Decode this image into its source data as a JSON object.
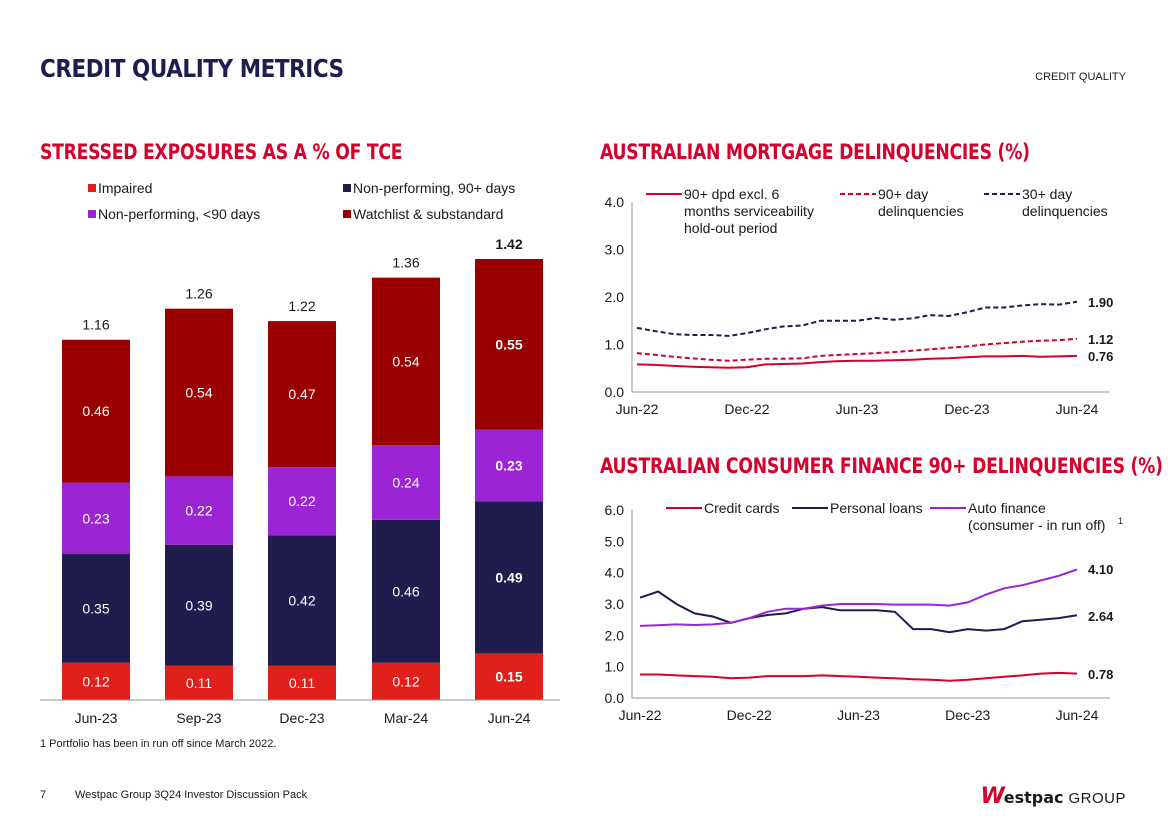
{
  "header": {
    "title": "CREDIT QUALITY METRICS",
    "section": "CREDIT QUALITY"
  },
  "colors": {
    "navy": "#1f1c4f",
    "red": "#d5002b",
    "dark_red": "#9b0000",
    "purple": "#9b24d4",
    "gray_axis": "#999999"
  },
  "stressed": {
    "title": "STRESSED EXPOSURES AS A % OF TCE",
    "footnote": "1 Portfolio has been in run off since March 2022."
  },
  "mortgage": {
    "title": "AUSTRALIAN MORTGAGE DELINQUENCIES (%)"
  },
  "consumer": {
    "title": "AUSTRALIAN CONSUMER FINANCE 90+ DELINQUENCIES (%)"
  },
  "footer": {
    "page": "7",
    "doc_title": "Westpac Group 3Q24 Investor Discussion Pack",
    "logo_mark": "W",
    "logo_name": "estpac",
    "logo_group": "GROUP"
  },
  "chart_data": [
    {
      "id": "stressed",
      "type": "bar",
      "stacked": true,
      "title": "STRESSED EXPOSURES AS A % OF TCE",
      "categories": [
        "Jun-23",
        "Sep-23",
        "Dec-23",
        "Mar-24",
        "Jun-24"
      ],
      "series": [
        {
          "name": "Impaired",
          "color": "#e0201b",
          "values": [
            0.12,
            0.11,
            0.11,
            0.12,
            0.15
          ],
          "labels": [
            "0.12",
            "0.11",
            "0.11",
            "0.12",
            "0.15"
          ]
        },
        {
          "name": "Non-performing, 90+ days",
          "color": "#201d4e",
          "values": [
            0.35,
            0.39,
            0.42,
            0.46,
            0.49
          ],
          "labels": [
            "0.35",
            "0.39",
            "0.42",
            "0.46",
            "0.49"
          ]
        },
        {
          "name": "Non-performing, <90 days",
          "color": "#9b24d4",
          "values": [
            0.23,
            0.22,
            0.22,
            0.24,
            0.23
          ],
          "labels": [
            "0.23",
            "0.22",
            "0.22",
            "0.24",
            "0.23"
          ]
        },
        {
          "name": "Watchlist & substandard",
          "color": "#9b0000",
          "values": [
            0.46,
            0.54,
            0.47,
            0.54,
            0.55
          ],
          "labels": [
            "0.46",
            "0.54",
            "0.47",
            "0.54",
            "0.55"
          ]
        }
      ],
      "totals": [
        1.16,
        1.26,
        1.22,
        1.36,
        1.42
      ],
      "total_labels": [
        "1.16",
        "1.26",
        "1.22",
        "1.36",
        "1.42"
      ],
      "legend": [
        {
          "text": "Impaired",
          "color": "#e0201b"
        },
        {
          "text": "Non-performing, 90+ days",
          "color": "#201d4e"
        },
        {
          "text": "Non-performing, <90 days",
          "color": "#9b24d4"
        },
        {
          "text": "Watchlist & substandard",
          "color": "#9b0000"
        }
      ],
      "ylim": [
        0,
        1.5
      ],
      "highlight_last": true
    },
    {
      "id": "mortgage",
      "type": "line",
      "title": "AUSTRALIAN MORTGAGE DELINQUENCIES (%)",
      "x_count": 25,
      "x_ticks": [
        {
          "i": 0,
          "label": "Jun-22"
        },
        {
          "i": 6,
          "label": "Dec-22"
        },
        {
          "i": 12,
          "label": "Jun-23"
        },
        {
          "i": 18,
          "label": "Dec-23"
        },
        {
          "i": 24,
          "label": "Jun-24"
        }
      ],
      "ylim": [
        0,
        4
      ],
      "y_ticks": [
        "0.0",
        "1.0",
        "2.0",
        "3.0",
        "4.0"
      ],
      "y_tick_values": [
        0,
        1,
        2,
        3,
        4
      ],
      "series": [
        {
          "name": "90+ dpd excl. 6 months serviceability hold-out period",
          "legend_lines": [
            "90+ dpd excl. 6",
            "months serviceability",
            "hold-out period"
          ],
          "color": "#d5002b",
          "dash": false,
          "values": [
            0.58,
            0.57,
            0.55,
            0.53,
            0.52,
            0.51,
            0.52,
            0.58,
            0.59,
            0.6,
            0.63,
            0.65,
            0.66,
            0.66,
            0.67,
            0.68,
            0.7,
            0.71,
            0.73,
            0.75,
            0.75,
            0.76,
            0.74,
            0.75,
            0.76
          ],
          "end_label": "0.76"
        },
        {
          "name": "90+ day delinquencies",
          "legend_lines": [
            "90+ day",
            "delinquencies"
          ],
          "color": "#d5002b",
          "dash": true,
          "values": [
            0.82,
            0.78,
            0.74,
            0.71,
            0.68,
            0.66,
            0.68,
            0.7,
            0.7,
            0.71,
            0.76,
            0.78,
            0.8,
            0.82,
            0.84,
            0.87,
            0.9,
            0.93,
            0.96,
            1.0,
            1.03,
            1.06,
            1.08,
            1.09,
            1.12
          ],
          "end_label": "1.12"
        },
        {
          "name": "30+ day delinquencies",
          "legend_lines": [
            "30+ day",
            "delinquencies"
          ],
          "color": "#1f1c4f",
          "dash": true,
          "values": [
            1.35,
            1.28,
            1.22,
            1.2,
            1.2,
            1.18,
            1.24,
            1.32,
            1.38,
            1.4,
            1.5,
            1.5,
            1.5,
            1.56,
            1.52,
            1.55,
            1.62,
            1.6,
            1.68,
            1.78,
            1.78,
            1.82,
            1.85,
            1.84,
            1.9
          ],
          "end_label": "1.90"
        }
      ]
    },
    {
      "id": "consumer",
      "type": "line",
      "title": "AUSTRALIAN CONSUMER FINANCE 90+ DELINQUENCIES (%)",
      "x_count": 25,
      "x_ticks": [
        {
          "i": 0,
          "label": "Jun-22"
        },
        {
          "i": 6,
          "label": "Dec-22"
        },
        {
          "i": 12,
          "label": "Jun-23"
        },
        {
          "i": 18,
          "label": "Dec-23"
        },
        {
          "i": 24,
          "label": "Jun-24"
        }
      ],
      "ylim": [
        0,
        6
      ],
      "y_ticks": [
        "0.0",
        "1.0",
        "2.0",
        "3.0",
        "4.0",
        "5.0",
        "6.0"
      ],
      "y_tick_values": [
        0,
        1,
        2,
        3,
        4,
        5,
        6
      ],
      "series": [
        {
          "name": "Credit cards",
          "legend_lines": [
            "Credit cards"
          ],
          "color": "#d5002b",
          "dash": false,
          "values": [
            0.75,
            0.75,
            0.72,
            0.7,
            0.68,
            0.63,
            0.65,
            0.7,
            0.7,
            0.7,
            0.72,
            0.7,
            0.68,
            0.65,
            0.63,
            0.6,
            0.58,
            0.55,
            0.58,
            0.63,
            0.68,
            0.72,
            0.78,
            0.8,
            0.78
          ],
          "end_label": "0.78"
        },
        {
          "name": "Personal loans",
          "legend_lines": [
            "Personal loans"
          ],
          "color": "#1f1c4f",
          "dash": false,
          "values": [
            3.2,
            3.4,
            3.0,
            2.7,
            2.6,
            2.4,
            2.55,
            2.65,
            2.7,
            2.85,
            2.9,
            2.8,
            2.8,
            2.8,
            2.75,
            2.2,
            2.2,
            2.1,
            2.2,
            2.15,
            2.2,
            2.45,
            2.5,
            2.55,
            2.64
          ],
          "end_label": "2.64"
        },
        {
          "name": "Auto finance (consumer - in run off)",
          "legend_lines": [
            "Auto finance",
            "(consumer - in run off)"
          ],
          "legend_sup": "1",
          "color": "#9b24d4",
          "dash": false,
          "values": [
            2.3,
            2.32,
            2.35,
            2.33,
            2.35,
            2.4,
            2.55,
            2.75,
            2.85,
            2.85,
            2.95,
            3.0,
            3.0,
            3.0,
            2.98,
            2.98,
            2.98,
            2.95,
            3.05,
            3.3,
            3.5,
            3.6,
            3.75,
            3.9,
            4.1
          ],
          "end_label": "4.10"
        }
      ]
    }
  ]
}
